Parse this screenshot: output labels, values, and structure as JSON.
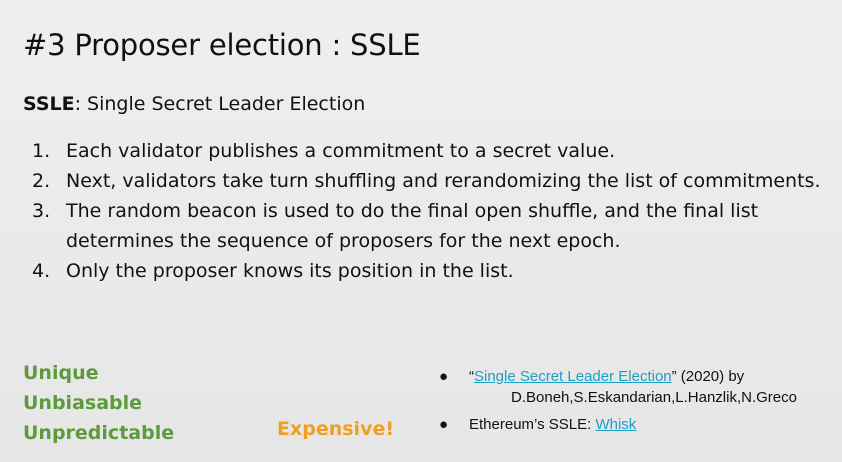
{
  "slide": {
    "title": "#3 Proposer election : SSLE",
    "subtitle": {
      "term": "SSLE",
      "definition": ": Single Secret Leader Election"
    },
    "steps": [
      {
        "num": "1.",
        "text": "Each validator publishes a commitment to a secret value."
      },
      {
        "num": "2.",
        "text": "Next, validators take turn shuffling and rerandomizing the list of commitments."
      },
      {
        "num": "3.",
        "text": "The random beacon is used to do the final open shuffle, and the final list determines the sequence of proposers for the next epoch."
      },
      {
        "num": "4.",
        "text": "Only the proposer knows its position in the list."
      }
    ],
    "properties": [
      "Unique",
      "Unbiasable",
      "Unpredictable"
    ],
    "drawback": "Expensive!",
    "references": {
      "bullet": "●",
      "paper": {
        "open_quote": "“",
        "link_text": "Single Secret Leader Election",
        "close_rest": "” (2020) by",
        "authors": "D.Boneh,S.Eskandarian,L.Hanzlik,N.Greco"
      },
      "ethereum": {
        "prefix": "Ethereum’s SSLE: ",
        "link_text": "Whisk"
      }
    },
    "colors": {
      "properties": "#5d9a3e",
      "drawback": "#f0a020",
      "link": "#1aa0c4"
    }
  }
}
